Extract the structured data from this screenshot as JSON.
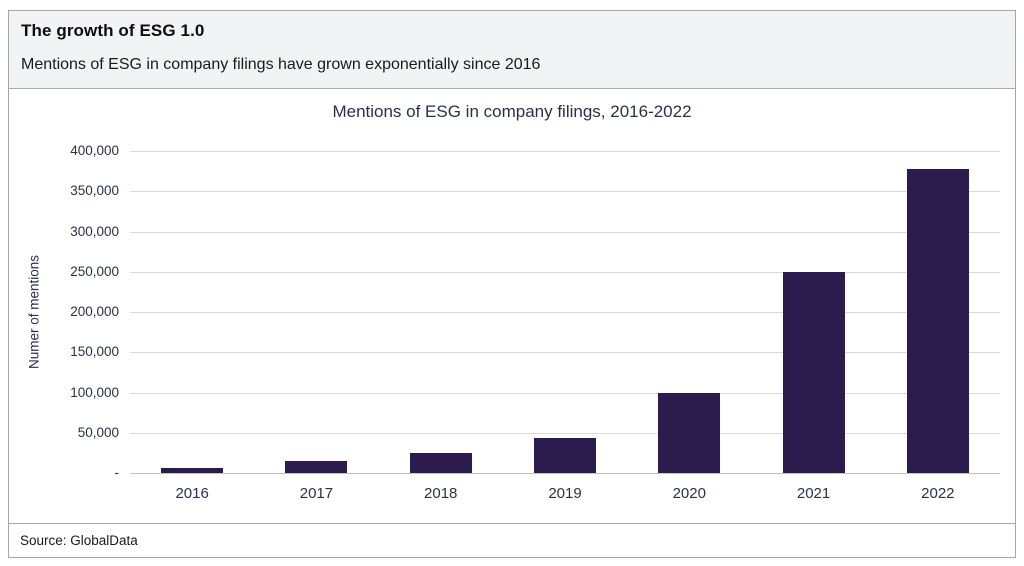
{
  "header": {
    "title": "The growth of ESG 1.0",
    "subtitle": "Mentions of ESG in company filings have grown exponentially since 2016"
  },
  "footer": {
    "source": "Source: GlobalData"
  },
  "colors": {
    "bar": "#2b1c4d",
    "header_bg": "#f2f3f4",
    "frame_border": "#a6a6a6",
    "gridline": "#d9d9d9",
    "axis_line": "#c2c2c2",
    "chart_text": "#273248"
  },
  "chart_data": {
    "type": "bar",
    "title": "Mentions of ESG in company filings, 2016-2022",
    "xlabel": "",
    "ylabel": "Numer of mentions",
    "categories": [
      "2016",
      "2017",
      "2018",
      "2019",
      "2020",
      "2021",
      "2022"
    ],
    "values": [
      6000,
      15000,
      25000,
      43000,
      99000,
      250000,
      378000
    ],
    "ylim": [
      0,
      400000
    ],
    "ytick_step": 50000,
    "ytick_labels": [
      "-",
      "50,000",
      "100,000",
      "150,000",
      "200,000",
      "250,000",
      "300,000",
      "350,000",
      "400,000"
    ],
    "grid": true,
    "legend_position": "none",
    "bar_color": "#2b1c4d"
  }
}
